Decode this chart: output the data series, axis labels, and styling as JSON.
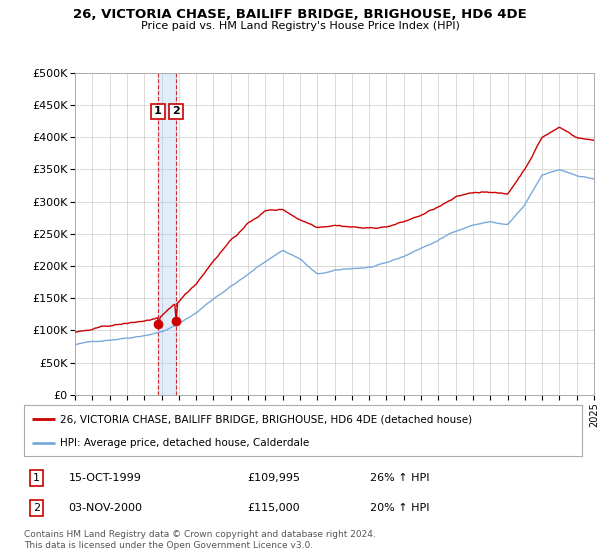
{
  "title": "26, VICTORIA CHASE, BAILIFF BRIDGE, BRIGHOUSE, HD6 4DE",
  "subtitle": "Price paid vs. HM Land Registry's House Price Index (HPI)",
  "property_label": "26, VICTORIA CHASE, BAILIFF BRIDGE, BRIGHOUSE, HD6 4DE (detached house)",
  "hpi_label": "HPI: Average price, detached house, Calderdale",
  "footer": "Contains HM Land Registry data © Crown copyright and database right 2024.\nThis data is licensed under the Open Government Licence v3.0.",
  "transactions": [
    {
      "num": 1,
      "date": "15-OCT-1999",
      "price": 109995,
      "hpi_note": "26% ↑ HPI",
      "x": 1999.79
    },
    {
      "num": 2,
      "date": "03-NOV-2000",
      "price": 115000,
      "hpi_note": "20% ↑ HPI",
      "x": 2000.84
    }
  ],
  "ylim": [
    0,
    500000
  ],
  "xlim": [
    1995,
    2025
  ],
  "yticks": [
    0,
    50000,
    100000,
    150000,
    200000,
    250000,
    300000,
    350000,
    400000,
    450000,
    500000
  ],
  "property_color": "#cc0000",
  "hpi_color": "#7aaadd",
  "vline_color": "#cc0000",
  "shaded_color": "#aaccee",
  "background_color": "#ffffff",
  "grid_color": "#cccccc",
  "hpi_anchors_x": [
    1995,
    1996,
    1997,
    1998,
    1999,
    2000,
    2001,
    2002,
    2003,
    2004,
    2005,
    2006,
    2007,
    2008,
    2009,
    2010,
    2011,
    2012,
    2013,
    2014,
    2015,
    2016,
    2017,
    2018,
    2019,
    2020,
    2021,
    2022,
    2023,
    2024,
    2025
  ],
  "hpi_anchors_y": [
    78000,
    82000,
    86000,
    90000,
    95000,
    101000,
    113000,
    130000,
    152000,
    172000,
    190000,
    210000,
    228000,
    215000,
    190000,
    195000,
    198000,
    200000,
    205000,
    215000,
    228000,
    240000,
    255000,
    265000,
    270000,
    265000,
    295000,
    340000,
    348000,
    340000,
    335000
  ],
  "prop_anchors_x": [
    1995,
    1996,
    1997,
    1998,
    1999,
    2000,
    2001,
    2002,
    2003,
    2004,
    2005,
    2006,
    2007,
    2008,
    2009,
    2010,
    2011,
    2012,
    2013,
    2014,
    2015,
    2016,
    2017,
    2018,
    2019,
    2020,
    2021,
    2022,
    2023,
    2024,
    2025
  ],
  "prop_anchors_y": [
    97000,
    100000,
    105000,
    108000,
    112000,
    118000,
    140000,
    168000,
    205000,
    238000,
    263000,
    283000,
    285000,
    270000,
    260000,
    265000,
    263000,
    260000,
    263000,
    270000,
    280000,
    292000,
    305000,
    312000,
    315000,
    310000,
    350000,
    400000,
    415000,
    400000,
    395000
  ]
}
